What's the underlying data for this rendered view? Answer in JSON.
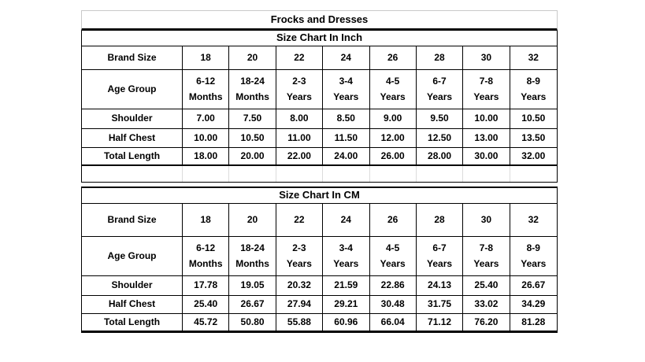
{
  "title": "Frocks and Dresses",
  "colors": {
    "grid": "#000000",
    "title_outline": "#c9c9c9",
    "faint_grid": "#dcdcdc",
    "text": "#000000",
    "background": "#ffffff"
  },
  "sections": [
    {
      "title": "Size Chart In Inch",
      "rows": [
        {
          "label": "Brand Size",
          "values": [
            "18",
            "20",
            "22",
            "24",
            "26",
            "28",
            "30",
            "32"
          ]
        },
        {
          "label": "Age Group",
          "values": [
            "6-12\nMonths",
            "18-24\nMonths",
            "2-3\nYears",
            "3-4\nYears",
            "4-5\nYears",
            "6-7\nYears",
            "7-8\nYears",
            "8-9\nYears"
          ]
        },
        {
          "label": "Shoulder",
          "values": [
            "7.00",
            "7.50",
            "8.00",
            "8.50",
            "9.00",
            "9.50",
            "10.00",
            "10.50"
          ]
        },
        {
          "label": "Half Chest",
          "values": [
            "10.00",
            "10.50",
            "11.00",
            "11.50",
            "12.00",
            "12.50",
            "13.00",
            "13.50"
          ]
        },
        {
          "label": "Total Length",
          "values": [
            "18.00",
            "20.00",
            "22.00",
            "24.00",
            "26.00",
            "28.00",
            "30.00",
            "32.00"
          ]
        }
      ]
    },
    {
      "title": "Size Chart In CM",
      "rows": [
        {
          "label": "Brand Size",
          "values": [
            "18",
            "20",
            "22",
            "24",
            "26",
            "28",
            "30",
            "32"
          ]
        },
        {
          "label": "Age Group",
          "values": [
            "6-12\nMonths",
            "18-24\nMonths",
            "2-3\nYears",
            "3-4\nYears",
            "4-5\nYears",
            "6-7\nYears",
            "7-8\nYears",
            "8-9\nYears"
          ]
        },
        {
          "label": "Shoulder",
          "values": [
            "17.78",
            "19.05",
            "20.32",
            "21.59",
            "22.86",
            "24.13",
            "25.40",
            "26.67"
          ]
        },
        {
          "label": "Half Chest",
          "values": [
            "25.40",
            "26.67",
            "27.94",
            "29.21",
            "30.48",
            "31.75",
            "33.02",
            "34.29"
          ]
        },
        {
          "label": "Total Length",
          "values": [
            "45.72",
            "50.80",
            "55.88",
            "60.96",
            "66.04",
            "71.12",
            "76.20",
            "81.28"
          ]
        }
      ]
    }
  ]
}
